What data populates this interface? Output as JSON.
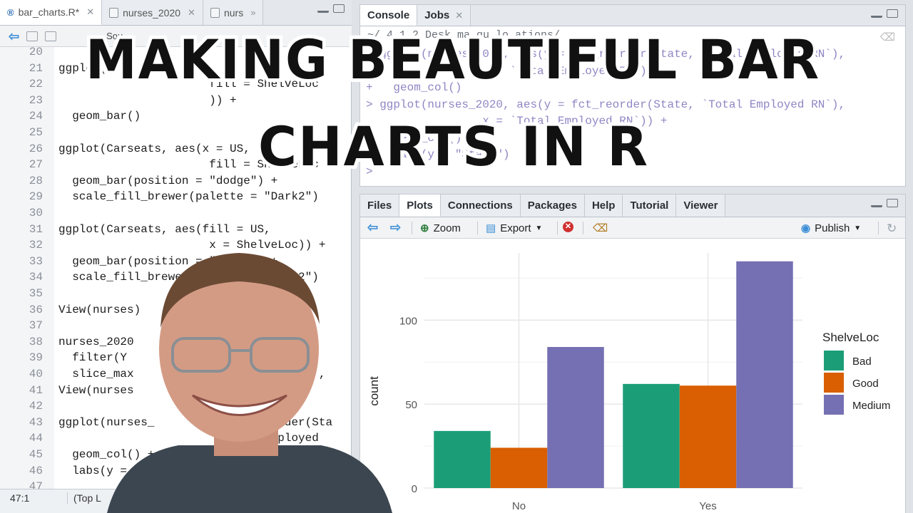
{
  "editor": {
    "tabs": [
      {
        "label": "bar_charts.R*",
        "active": true
      },
      {
        "label": "nurses_2020",
        "active": false
      },
      {
        "label": "nurs",
        "active": false
      }
    ],
    "toolbar_source": "Sou",
    "lines": [
      {
        "n": "20",
        "t": ""
      },
      {
        "n": "21",
        "t": "ggplot(     es     "
      },
      {
        "n": "22",
        "t": "                      fill = ShelveLoc"
      },
      {
        "n": "23",
        "t": "                      )) +"
      },
      {
        "n": "24",
        "t": "  geom_bar()"
      },
      {
        "n": "25",
        "t": ""
      },
      {
        "n": "26",
        "t": "ggplot(Carseats, aes(x = US,"
      },
      {
        "n": "27",
        "t": "                      fill = ShelveLoc"
      },
      {
        "n": "28",
        "t": "  geom_bar(position = \"dodge\") +"
      },
      {
        "n": "29",
        "t": "  scale_fill_brewer(palette = \"Dark2\")"
      },
      {
        "n": "30",
        "t": ""
      },
      {
        "n": "31",
        "t": "ggplot(Carseats, aes(fill = US,"
      },
      {
        "n": "32",
        "t": "                      x = ShelveLoc)) +"
      },
      {
        "n": "33",
        "t": "  geom_bar(position = \"dodge\") +"
      },
      {
        "n": "34",
        "t": "  scale_fill_brewer(palette = \"Dark2\")"
      },
      {
        "n": "35",
        "t": ""
      },
      {
        "n": "36",
        "t": "View(nurses)"
      },
      {
        "n": "37",
        "t": ""
      },
      {
        "n": "38",
        "t": "nurses_2020"
      },
      {
        "n": "39",
        "t": "  filter(Y"
      },
      {
        "n": "40",
        "t": "  slice_max               Employed RN`,"
      },
      {
        "n": "41",
        "t": "View(nurses"
      },
      {
        "n": "42",
        "t": ""
      },
      {
        "n": "43",
        "t": "ggplot(nurses_            ct_reorder(Sta"
      },
      {
        "n": "44",
        "t": "                        Total Employed"
      },
      {
        "n": "45",
        "t": "  geom_col() +"
      },
      {
        "n": "46",
        "t": "  labs(y = \"Sta"
      },
      {
        "n": "47",
        "t": ""
      }
    ],
    "status": {
      "position": "47:1",
      "scope": "(Top L"
    }
  },
  "console": {
    "tabs": [
      "Console",
      "Jobs"
    ],
    "path": "~/    4.1.2     Desk      ma      qu       lo  ations/",
    "lines": [
      "> ggplot(nurses_2020, aes(y = fct_reorder(State, `Total Employed RN`),",
      "                 x = `Total Employed RN`)) +",
      "+   geom_col()",
      "> ggplot(nurses_2020, aes(y = fct_reorder(State, `Total Employed RN`),",
      "                 x = `Total Employed RN`)) +",
      "+   geom_col() +",
      "+   labs(y = \"State\")",
      ">"
    ]
  },
  "plots": {
    "tabs": [
      "Files",
      "Plots",
      "Connections",
      "Packages",
      "Help",
      "Tutorial",
      "Viewer"
    ],
    "active_tab": "Plots",
    "toolbar": {
      "zoom": "Zoom",
      "export": "Export",
      "publish": "Publish"
    }
  },
  "chart_data": {
    "type": "bar",
    "categories": [
      "No",
      "Yes"
    ],
    "series": [
      {
        "name": "Bad",
        "color": "#1b9e77",
        "values": [
          34,
          62
        ]
      },
      {
        "name": "Good",
        "color": "#d95f02",
        "values": [
          24,
          61
        ]
      },
      {
        "name": "Medium",
        "color": "#7570b3",
        "values": [
          84,
          135
        ]
      }
    ],
    "xlabel": "",
    "ylabel": "count",
    "yticks": [
      0,
      50,
      100
    ],
    "ylim": [
      0,
      140
    ],
    "legend_title": "ShelveLoc",
    "legend_position": "right",
    "grid": true
  },
  "overlay": {
    "title_line1": "MAKING BEAUTIFUL BAR",
    "title_line2": "CHARTS IN R"
  }
}
